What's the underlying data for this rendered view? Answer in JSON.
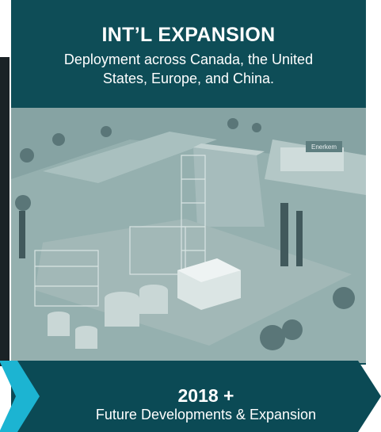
{
  "header": {
    "title": "INT’L EXPANSION",
    "subtitle": "Deployment across Canada, the United States, Europe, and China."
  },
  "image": {
    "logo_text": "Enerkem"
  },
  "footer": {
    "year": "2018 +",
    "caption": "Future Developments & Expansion"
  }
}
